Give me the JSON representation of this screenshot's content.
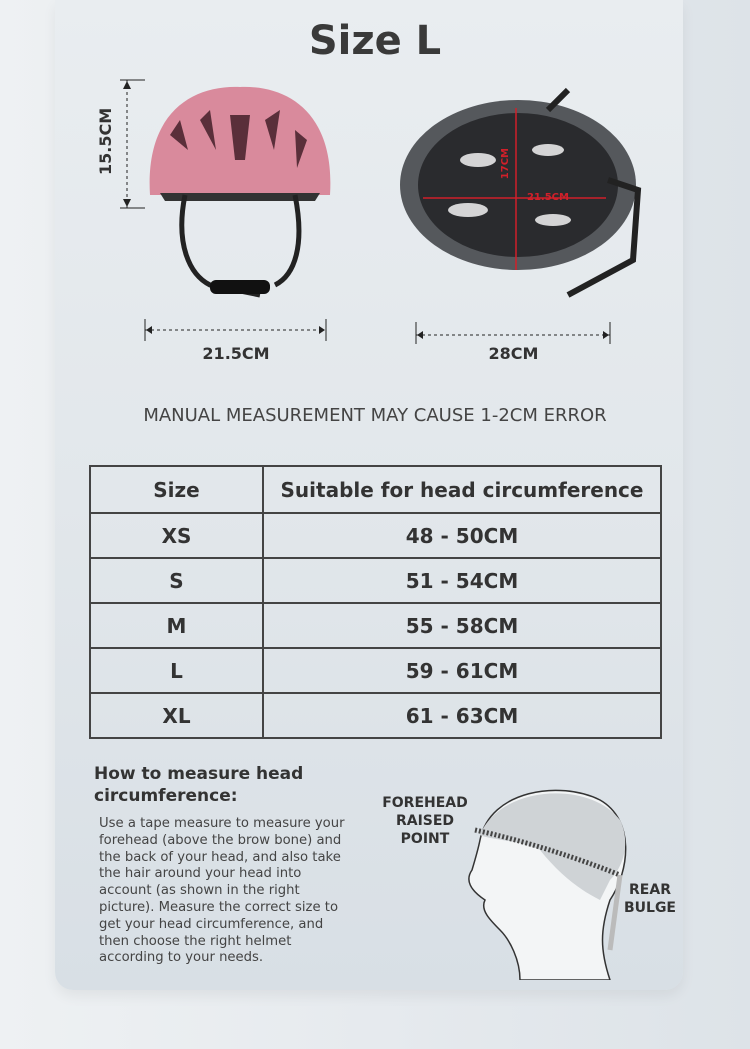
{
  "title": "Size L",
  "front_view": {
    "height_label": "15.5CM",
    "width_label": "21.5CM"
  },
  "inner_view": {
    "length_label": "28CM",
    "inner_length": "17CM",
    "inner_width": "21.5CM"
  },
  "note": "MANUAL MEASUREMENT MAY CAUSE 1-2CM ERROR",
  "table": {
    "headers": [
      "Size",
      "Suitable for head circumference"
    ],
    "rows": [
      [
        "XS",
        "48 - 50CM"
      ],
      [
        "S",
        "51 - 54CM"
      ],
      [
        "M",
        "55 - 58CM"
      ],
      [
        "L",
        "59 - 61CM"
      ],
      [
        "XL",
        "61 - 63CM"
      ]
    ]
  },
  "howto": {
    "title": "How to measure head circumference:",
    "body": "Use a tape measure to measure your forehead (above the brow bone) and the back of your head, and also take the hair around your head into account (as shown in the right picture). Measure the correct size to get your head circumference, and then choose the right helmet according to your needs.",
    "label_front": "FOREHEAD RAISED POINT",
    "label_rear": "REAR BULGE"
  },
  "colors": {
    "helmet": "#d98a9c",
    "measure_red": "#d0202a"
  }
}
